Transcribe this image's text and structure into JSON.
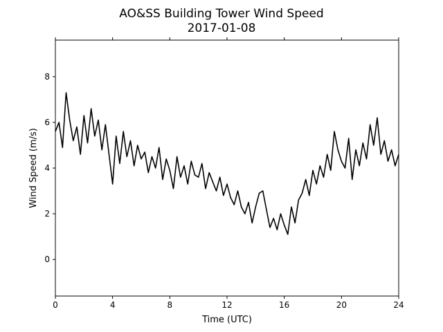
{
  "chart_data": {
    "type": "line",
    "title": "AO&SS Building Tower Wind Speed",
    "subtitle": "2017-01-08",
    "xlabel": "Time (UTC)",
    "ylabel": "Wind Speed (m/s)",
    "xlim": [
      0,
      24
    ],
    "ylim": [
      -1.6,
      9.6
    ],
    "xticks": [
      0,
      4,
      8,
      12,
      16,
      20,
      24
    ],
    "yticks": [
      0,
      2,
      4,
      6,
      8
    ],
    "grid": false,
    "legend": "none",
    "line_color": "#000000",
    "series": [
      {
        "x": [
          0.0,
          0.25,
          0.5,
          0.75,
          1.0,
          1.25,
          1.5,
          1.75,
          2.0,
          2.25,
          2.5,
          2.75,
          3.0,
          3.25,
          3.5,
          3.75,
          4.0,
          4.25,
          4.5,
          4.75,
          5.0,
          5.25,
          5.5,
          5.75,
          6.0,
          6.25,
          6.5,
          6.75,
          7.0,
          7.25,
          7.5,
          7.75,
          8.0,
          8.25,
          8.5,
          8.75,
          9.0,
          9.25,
          9.5,
          9.75,
          10.0,
          10.25,
          10.5,
          10.75,
          11.0,
          11.25,
          11.5,
          11.75,
          12.0,
          12.25,
          12.5,
          12.75,
          13.0,
          13.25,
          13.5,
          13.75,
          14.0,
          14.25,
          14.5,
          14.75,
          15.0,
          15.25,
          15.5,
          15.75,
          16.0,
          16.25,
          16.5,
          16.75,
          17.0,
          17.25,
          17.5,
          17.75,
          18.0,
          18.25,
          18.5,
          18.75,
          19.0,
          19.25,
          19.5,
          19.75,
          20.0,
          20.25,
          20.5,
          20.75,
          21.0,
          21.25,
          21.5,
          21.75,
          22.0,
          22.25,
          22.5,
          22.75,
          23.0,
          23.25,
          23.5,
          23.75,
          24.0
        ],
        "values": [
          5.6,
          6.0,
          4.9,
          7.3,
          6.1,
          5.2,
          5.8,
          4.6,
          6.3,
          5.1,
          6.6,
          5.4,
          6.1,
          4.8,
          5.9,
          4.6,
          3.3,
          5.4,
          4.2,
          5.6,
          4.5,
          5.2,
          4.1,
          5.0,
          4.4,
          4.7,
          3.8,
          4.5,
          4.0,
          4.9,
          3.5,
          4.4,
          3.9,
          3.1,
          4.5,
          3.6,
          4.1,
          3.3,
          4.3,
          3.7,
          3.6,
          4.2,
          3.1,
          3.8,
          3.4,
          3.0,
          3.6,
          2.8,
          3.3,
          2.7,
          2.4,
          3.0,
          2.3,
          2.0,
          2.5,
          1.6,
          2.3,
          2.9,
          3.0,
          2.2,
          1.4,
          1.8,
          1.3,
          2.0,
          1.5,
          1.1,
          2.3,
          1.6,
          2.6,
          2.9,
          3.5,
          2.8,
          3.9,
          3.3,
          4.1,
          3.6,
          4.6,
          3.9,
          5.6,
          4.8,
          4.3,
          4.0,
          5.3,
          3.5,
          4.8,
          4.1,
          5.1,
          4.4,
          5.9,
          5.0,
          6.2,
          4.6,
          5.2,
          4.3,
          4.8,
          4.1,
          4.6
        ]
      }
    ]
  }
}
